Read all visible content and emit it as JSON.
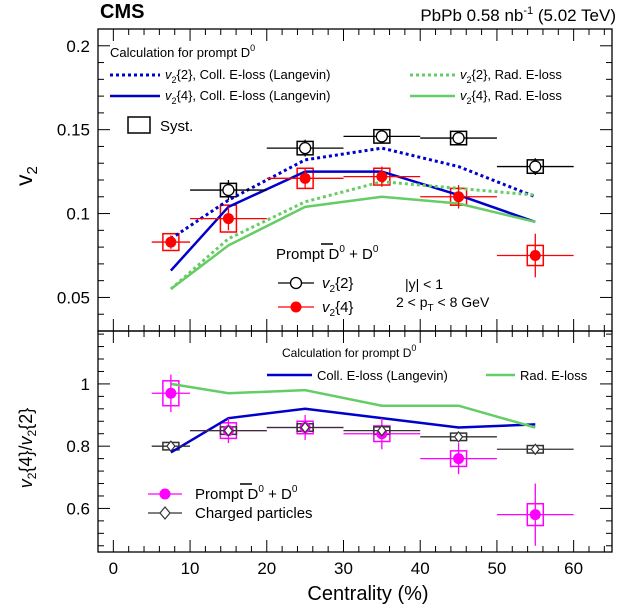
{
  "header": {
    "experiment": "CMS",
    "dataset_main": "PbPb 0.58 nb",
    "dataset_sup": "-1",
    "dataset_energy": " (5.02 TeV)"
  },
  "chart_data": [
    {
      "type": "scatter",
      "panel": "top",
      "ylabel_main": "v",
      "ylabel_sub": "2",
      "xlim": [
        -2,
        65
      ],
      "ylim": [
        0.03,
        0.21
      ],
      "yticks": [
        0.05,
        0.1,
        0.15,
        0.2
      ],
      "ytick_labels": [
        "0.05",
        "0.1",
        "0.15",
        "0.2"
      ],
      "legend_title": "Calculation for prompt D",
      "legend_title_sup": "0",
      "curve_legend": [
        {
          "pre": "v",
          "sub": "2",
          "post": "{2}, Coll. E-loss (Langevin)"
        },
        {
          "pre": "v",
          "sub": "2",
          "post": "{4}, Coll. E-loss (Langevin)"
        },
        {
          "pre": "v",
          "sub": "2",
          "post": "{2}, Rad. E-loss"
        },
        {
          "pre": "v",
          "sub": "2",
          "post": "{4}, Rad. E-loss"
        }
      ],
      "syst_label": "Syst.",
      "data_legend_title": {
        "text": "Prompt D",
        "sup1": "0",
        "mid": " + ",
        "dbar": "D",
        "sup2": "0"
      },
      "data_legend": [
        {
          "pre": "v",
          "sub": "2",
          "post": "{2}"
        },
        {
          "pre": "v",
          "sub": "2",
          "post": "{4}"
        }
      ],
      "cuts": {
        "rapidity": "|y| < 1",
        "pt_pre": "2 < p",
        "pt_sub": "T",
        "pt_post": " < 8 GeV"
      },
      "series": [
        {
          "name": "v2{2}",
          "color": "#000000",
          "marker": "open-circle",
          "x": [
            15,
            25,
            35,
            45,
            55
          ],
          "y": [
            0.114,
            0.139,
            0.146,
            0.145,
            0.128
          ],
          "xerr": [
            5,
            5,
            5,
            5,
            5
          ],
          "yerr": [
            0.006,
            0.005,
            0.004,
            0.004,
            0.005
          ],
          "syst_box": [
            0.004,
            0.004,
            0.004,
            0.004,
            0.004
          ]
        },
        {
          "name": "v2{4}",
          "color": "#ff0000",
          "marker": "filled-circle",
          "x": [
            7.5,
            15,
            25,
            35,
            45,
            55
          ],
          "y": [
            0.083,
            0.097,
            0.121,
            0.122,
            0.11,
            0.075
          ],
          "xerr": [
            2.5,
            5,
            5,
            5,
            5,
            5
          ],
          "yerr": [
            0.004,
            0.007,
            0.006,
            0.006,
            0.007,
            0.013
          ],
          "syst_box": [
            0.005,
            0.008,
            0.006,
            0.005,
            0.005,
            0.006
          ]
        }
      ],
      "curves": [
        {
          "name": "v2{2}, Coll. E-loss (Langevin)",
          "color": "#0000cc",
          "style": "dotted",
          "x": [
            7.5,
            15,
            25,
            35,
            45,
            55
          ],
          "y": [
            0.085,
            0.108,
            0.132,
            0.139,
            0.128,
            0.11
          ]
        },
        {
          "name": "v2{4}, Coll. E-loss (Langevin)",
          "color": "#0000cc",
          "style": "solid",
          "x": [
            7.5,
            15,
            25,
            35,
            45,
            55
          ],
          "y": [
            0.066,
            0.104,
            0.125,
            0.125,
            0.111,
            0.095
          ]
        },
        {
          "name": "v2{2}, Rad. E-loss",
          "color": "#66cc66",
          "style": "dotted",
          "x": [
            7.5,
            15,
            25,
            35,
            45,
            55
          ],
          "y": [
            0.055,
            0.085,
            0.107,
            0.119,
            0.115,
            0.111
          ]
        },
        {
          "name": "v2{4}, Rad. E-loss",
          "color": "#66cc66",
          "style": "solid",
          "x": [
            7.5,
            15,
            25,
            35,
            45,
            55
          ],
          "y": [
            0.055,
            0.081,
            0.104,
            0.11,
            0.106,
            0.095
          ]
        }
      ]
    },
    {
      "type": "scatter",
      "panel": "bottom",
      "ylabel": "v2{4}/v2{2}",
      "xlabel": "Centrality (%)",
      "xlim": [
        -2,
        65
      ],
      "ylim": [
        0.46,
        1.17
      ],
      "xticks": [
        0,
        10,
        20,
        30,
        40,
        50,
        60
      ],
      "xtick_labels": [
        "0",
        "10",
        "20",
        "30",
        "40",
        "50",
        "60"
      ],
      "yticks": [
        0.6,
        0.8,
        1.0
      ],
      "ytick_labels": [
        "0.6",
        "0.8",
        "1"
      ],
      "legend_title": "Calculation for prompt D",
      "legend_title_sup": "0",
      "curve_legend": [
        "Coll. E-loss (Langevin)",
        "Rad. E-loss"
      ],
      "data_legend_title": {
        "text": "Prompt D",
        "sup1": "0",
        "mid": " + ",
        "dbar": "D",
        "sup2": "0"
      },
      "data_legend_charged": "Charged particles",
      "series": [
        {
          "name": "Prompt D0 + D0bar",
          "color": "#ff00ff",
          "marker": "filled-circle",
          "x": [
            7.5,
            15,
            25,
            35,
            45,
            55
          ],
          "y": [
            0.97,
            0.85,
            0.86,
            0.84,
            0.76,
            0.58
          ],
          "xerr": [
            2.5,
            5,
            5,
            5,
            5,
            5
          ],
          "yerr": [
            0.06,
            0.04,
            0.04,
            0.05,
            0.05,
            0.1
          ],
          "syst_box": [
            0.04,
            0.025,
            0.02,
            0.025,
            0.025,
            0.035
          ]
        },
        {
          "name": "Charged particles",
          "color": "#333333",
          "marker": "open-diamond",
          "x": [
            7.5,
            15,
            25,
            35,
            45,
            55
          ],
          "y": [
            0.8,
            0.85,
            0.86,
            0.85,
            0.83,
            0.79
          ],
          "xerr": [
            2.5,
            5,
            5,
            5,
            5,
            5
          ],
          "yerr": [
            0.005,
            0.005,
            0.005,
            0.005,
            0.005,
            0.005
          ],
          "syst_box": [
            0.012,
            0.012,
            0.012,
            0.012,
            0.012,
            0.012
          ]
        }
      ],
      "curves": [
        {
          "name": "Coll. E-loss (Langevin)",
          "color": "#0000cc",
          "style": "solid",
          "x": [
            7.5,
            15,
            25,
            35,
            45,
            55
          ],
          "y": [
            0.78,
            0.89,
            0.92,
            0.89,
            0.86,
            0.87
          ]
        },
        {
          "name": "Rad. E-loss",
          "color": "#66cc66",
          "style": "solid",
          "x": [
            7.5,
            15,
            25,
            35,
            45,
            55
          ],
          "y": [
            1.0,
            0.97,
            0.98,
            0.93,
            0.93,
            0.86
          ]
        }
      ]
    }
  ]
}
